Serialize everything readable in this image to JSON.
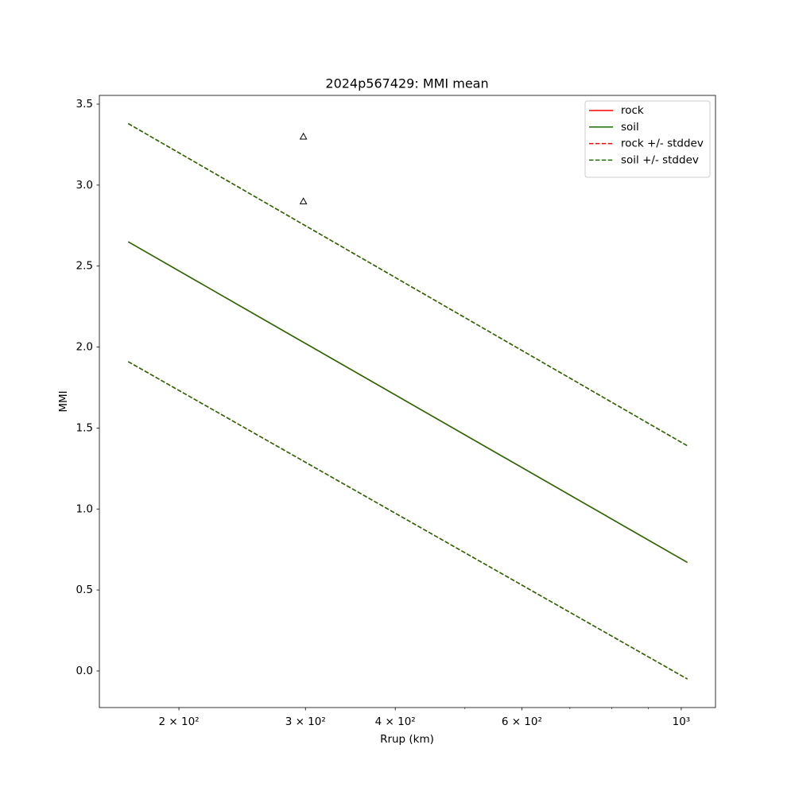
{
  "chart_data": {
    "type": "line",
    "title": "2024p567429: MMI mean",
    "xlabel": "Rrup (km)",
    "ylabel": "MMI",
    "xscale": "log",
    "x": [
      170,
      1020
    ],
    "series": [
      {
        "name": "rock",
        "color": "#ff0000",
        "style": "solid",
        "values": [
          2.65,
          0.67
        ]
      },
      {
        "name": "soil",
        "color": "#1a6e00",
        "style": "solid",
        "values": [
          2.65,
          0.67
        ]
      },
      {
        "name": "rock +/- stddev",
        "color": "#ff0000",
        "style": "dashed",
        "upper": [
          3.38,
          1.39
        ],
        "lower": [
          1.91,
          -0.05
        ]
      },
      {
        "name": "soil +/- stddev",
        "color": "#1a6e00",
        "style": "dashed",
        "upper": [
          3.38,
          1.39
        ],
        "lower": [
          1.91,
          -0.05
        ]
      }
    ],
    "points": {
      "x": [
        298,
        298
      ],
      "values": [
        3.3,
        2.9
      ],
      "color": "#000000"
    },
    "xlim": [
      155,
      1116
    ],
    "ylim": [
      -0.226,
      3.554
    ],
    "xticks": [
      {
        "value": 200,
        "label": "2 × 10²"
      },
      {
        "value": 300,
        "label": "3 × 10²"
      },
      {
        "value": 400,
        "label": "4 × 10²"
      },
      {
        "value": 600,
        "label": "6 × 10²"
      },
      {
        "value": 1000,
        "label": "10³"
      }
    ],
    "xminorticks": [
      500,
      700,
      800,
      900
    ],
    "yticks": [
      {
        "value": 0,
        "label": "0.0"
      },
      0.5,
      {
        "value": 1,
        "label": "1.0"
      },
      1.5,
      {
        "value": 2,
        "label": "2.0"
      },
      2.5,
      {
        "value": 3,
        "label": "3.0"
      },
      3.5
    ],
    "grid": false,
    "legend": "upper right"
  }
}
